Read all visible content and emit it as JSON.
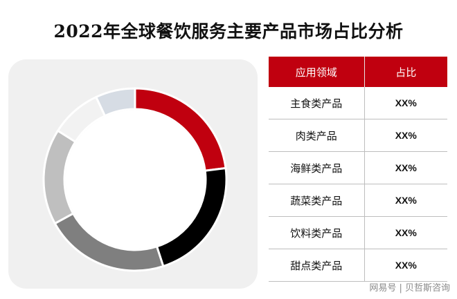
{
  "title": "2022年全球餐饮服务主要产品市场占比分析",
  "table": {
    "headers": [
      "应用领域",
      "占比"
    ],
    "rows": [
      {
        "category": "主食类产品",
        "value": "XX%"
      },
      {
        "category": "肉类产品",
        "value": "XX%"
      },
      {
        "category": "海鲜类产品",
        "value": "XX%"
      },
      {
        "category": "蔬菜类产品",
        "value": "XX%"
      },
      {
        "category": "饮料类产品",
        "value": "XX%"
      },
      {
        "category": "甜点类产品",
        "value": "XX%"
      }
    ]
  },
  "watermark": "网易号 | 贝哲斯咨询",
  "chart_data": {
    "type": "pie",
    "title": "",
    "categories": [
      "主食类产品",
      "肉类产品",
      "海鲜类产品",
      "蔬菜类产品",
      "饮料类产品",
      "甜点类产品"
    ],
    "values": [
      23,
      22,
      22,
      17,
      9,
      7
    ],
    "colors": [
      "#c0000f",
      "#000000",
      "#7f7f7f",
      "#bfbfbf",
      "#f2f2f2",
      "#d6dce4"
    ],
    "legend": "table-right"
  }
}
